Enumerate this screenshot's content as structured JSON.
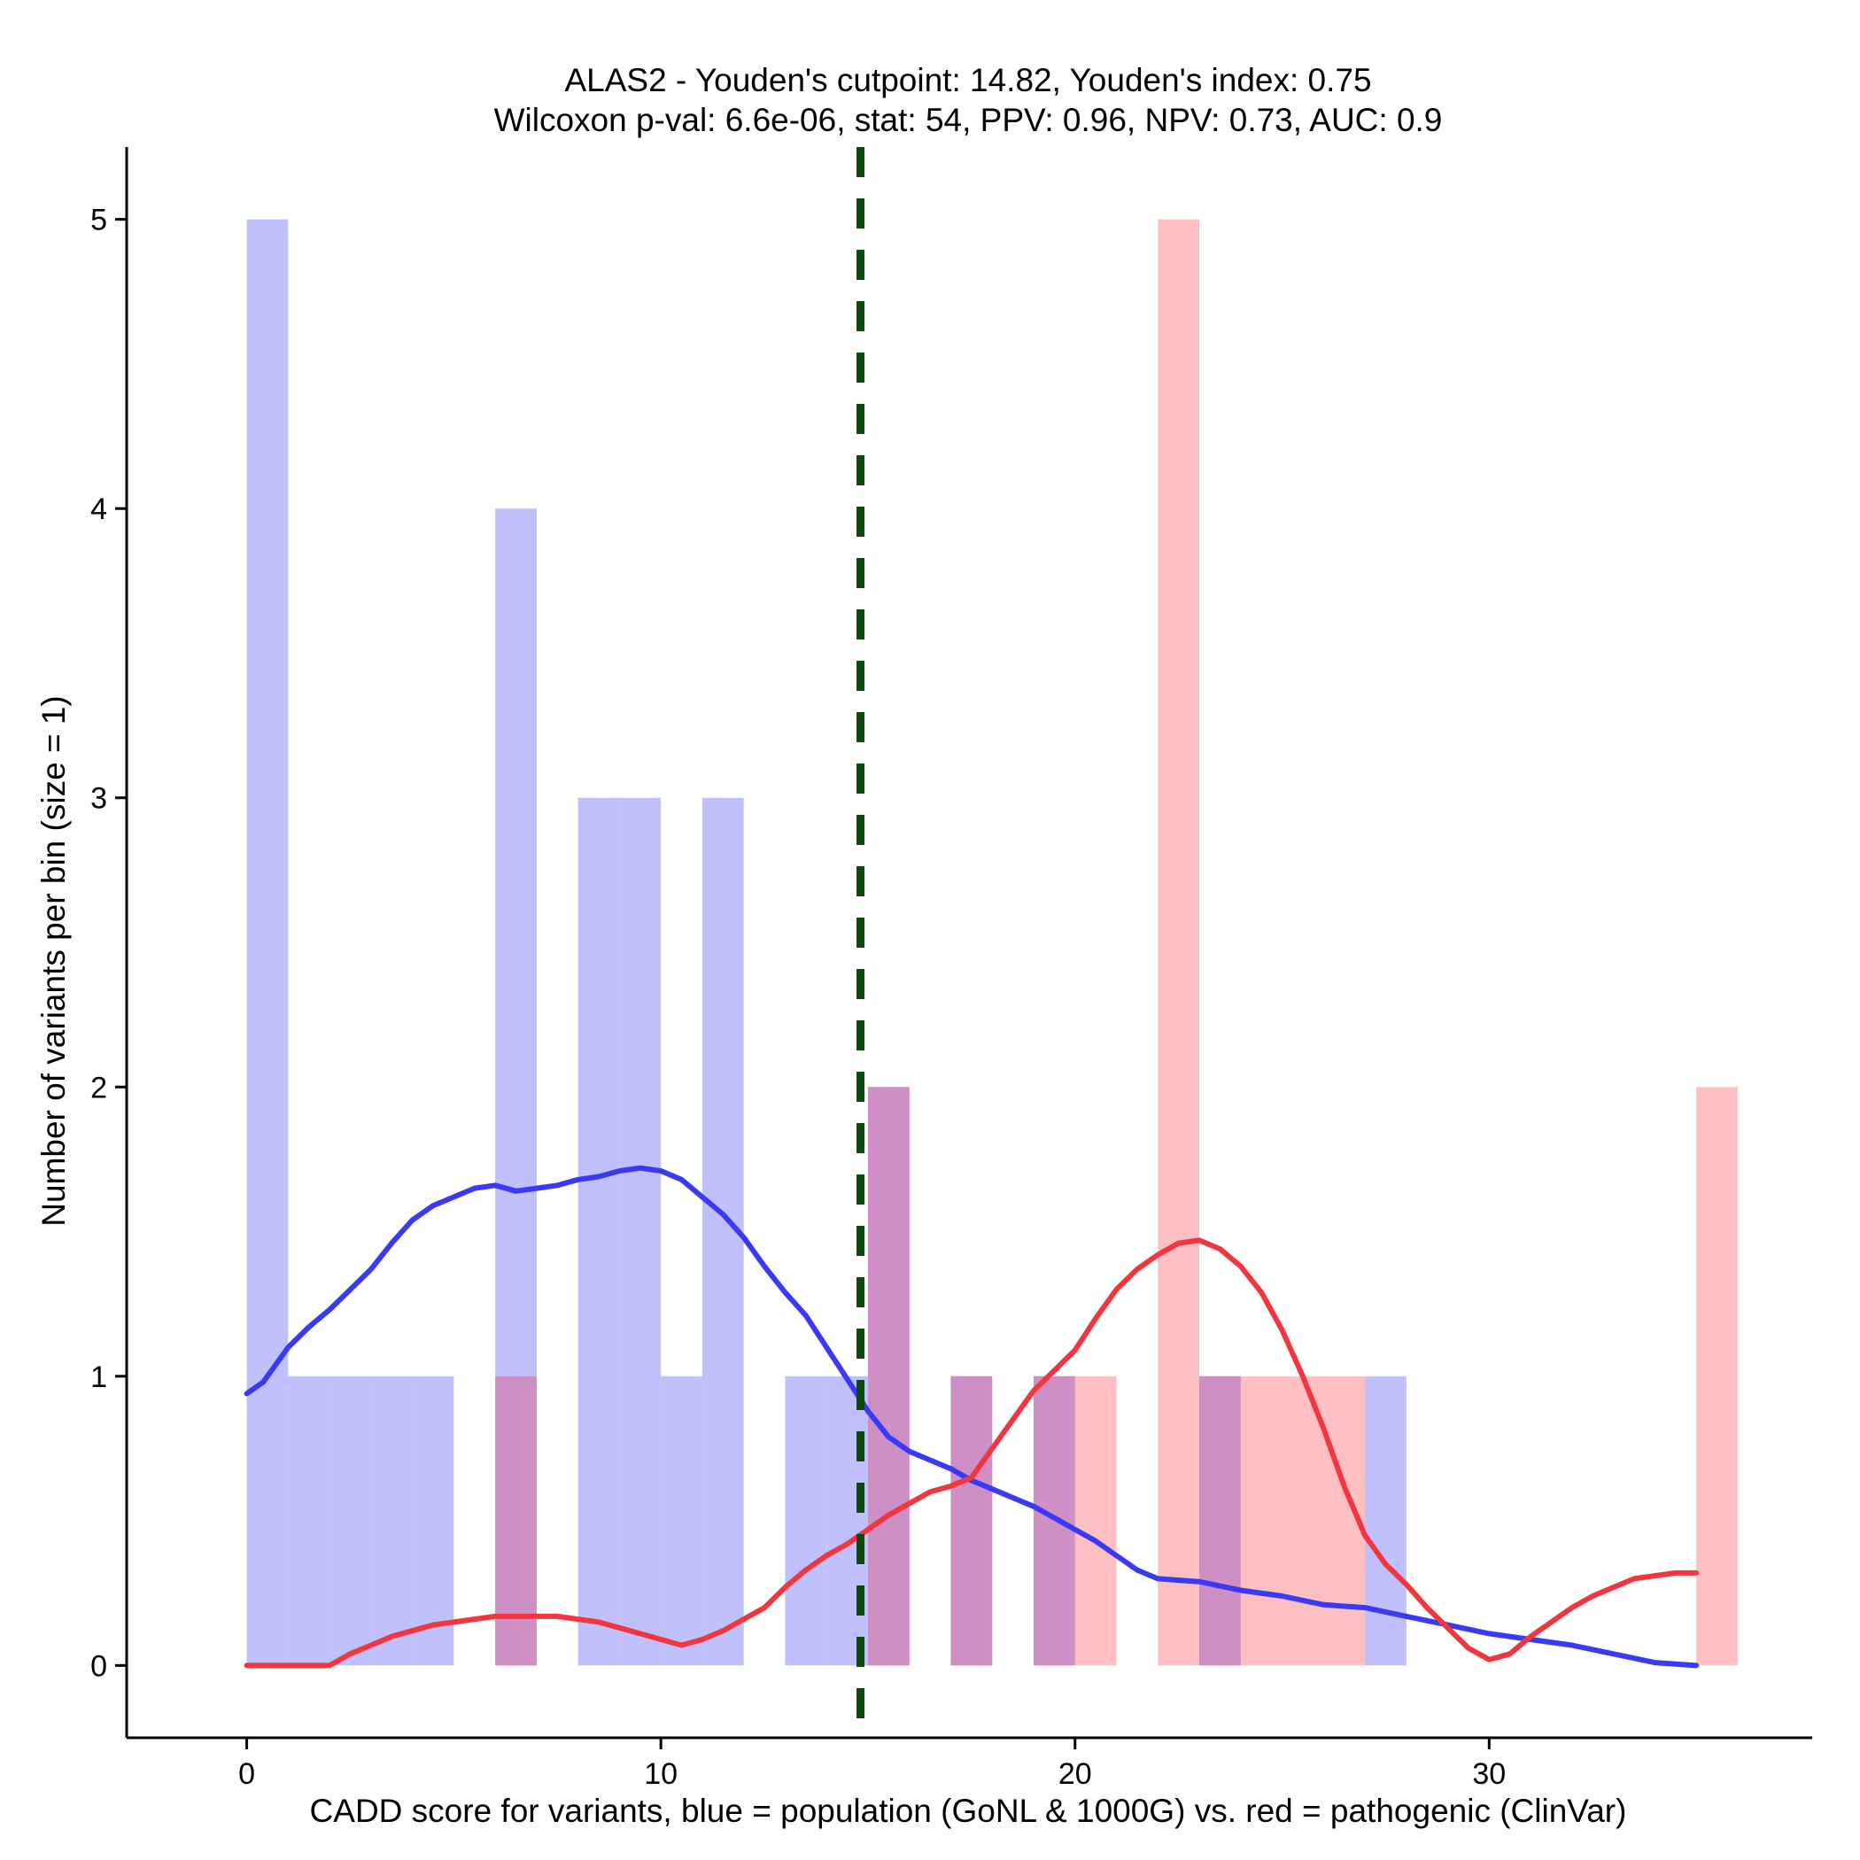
{
  "chart_data": {
    "type": "bar",
    "title_line1": "ALAS2 - Youden's cutpoint: 14.82, Youden's index: 0.75",
    "title_line2": "Wilcoxon p-val: 6.6e-06, stat: 54, PPV: 0.96, NPV: 0.73, AUC: 0.9",
    "xlabel": "CADD score for variants, blue = population (GoNL & 1000G) vs. red = pathogenic (ClinVar)",
    "ylabel": "Number of variants per bin (size = 1)",
    "xlim": [
      -2.9,
      37.8
    ],
    "ylim": [
      -0.25,
      5.25
    ],
    "xticks": [
      0,
      10,
      20,
      30
    ],
    "yticks": [
      0,
      1,
      2,
      3,
      4,
      5
    ],
    "bin_size": 1,
    "cutpoint": 14.82,
    "colors": {
      "population_bar": "#c0c0fc",
      "pathogenic_bar": "#fdbfc1",
      "overlap_bar": "#cd8fc4",
      "population_line": "#3a3af5",
      "pathogenic_line": "#f2363f",
      "cutpoint_line": "#0b4a0b"
    },
    "series": [
      {
        "name": "population (GoNL & 1000G)",
        "bins": [
          {
            "start": 0,
            "count": 5
          },
          {
            "start": 1,
            "count": 1
          },
          {
            "start": 2,
            "count": 1
          },
          {
            "start": 3,
            "count": 1
          },
          {
            "start": 4,
            "count": 1
          },
          {
            "start": 6,
            "count": 4
          },
          {
            "start": 8,
            "count": 3
          },
          {
            "start": 9,
            "count": 3
          },
          {
            "start": 10,
            "count": 1
          },
          {
            "start": 11,
            "count": 3
          },
          {
            "start": 13,
            "count": 1
          },
          {
            "start": 14,
            "count": 1
          },
          {
            "start": 15,
            "count": 2
          },
          {
            "start": 17,
            "count": 1
          },
          {
            "start": 19,
            "count": 1
          },
          {
            "start": 23,
            "count": 1
          },
          {
            "start": 27,
            "count": 1
          }
        ]
      },
      {
        "name": "pathogenic (ClinVar)",
        "bins": [
          {
            "start": 6,
            "count": 1
          },
          {
            "start": 15,
            "count": 2
          },
          {
            "start": 17,
            "count": 1
          },
          {
            "start": 19,
            "count": 1
          },
          {
            "start": 20,
            "count": 1
          },
          {
            "start": 22,
            "count": 5
          },
          {
            "start": 23,
            "count": 1
          },
          {
            "start": 24,
            "count": 1
          },
          {
            "start": 25,
            "count": 1
          },
          {
            "start": 26,
            "count": 1
          },
          {
            "start": 35,
            "count": 2
          }
        ]
      }
    ],
    "density_curves": [
      {
        "name": "population density",
        "x": [
          0,
          0.4,
          1,
          1.5,
          2,
          2.5,
          3,
          3.5,
          4,
          4.5,
          5,
          5.5,
          6,
          6.5,
          7,
          7.5,
          8,
          8.5,
          9,
          9.5,
          10,
          10.5,
          11,
          11.5,
          12,
          12.5,
          13,
          13.5,
          14,
          14.5,
          15,
          15.5,
          16,
          16.5,
          17,
          17.5,
          18,
          18.5,
          19,
          19.5,
          20,
          20.5,
          21,
          21.5,
          22,
          23,
          24,
          25,
          26,
          27,
          28,
          29,
          30,
          31,
          32,
          33,
          34,
          35
        ],
        "y": [
          0.94,
          0.98,
          1.1,
          1.17,
          1.23,
          1.3,
          1.37,
          1.46,
          1.54,
          1.59,
          1.62,
          1.65,
          1.66,
          1.64,
          1.65,
          1.66,
          1.68,
          1.69,
          1.71,
          1.72,
          1.71,
          1.68,
          1.62,
          1.56,
          1.48,
          1.38,
          1.29,
          1.21,
          1.1,
          0.99,
          0.88,
          0.79,
          0.74,
          0.71,
          0.68,
          0.64,
          0.61,
          0.58,
          0.55,
          0.51,
          0.47,
          0.43,
          0.38,
          0.33,
          0.3,
          0.29,
          0.26,
          0.24,
          0.21,
          0.2,
          0.17,
          0.14,
          0.11,
          0.09,
          0.07,
          0.04,
          0.01,
          0.0
        ]
      },
      {
        "name": "pathogenic density",
        "x": [
          0,
          1,
          2,
          2.5,
          3,
          3.5,
          4,
          4.5,
          5,
          5.5,
          6,
          6.5,
          7,
          7.5,
          8,
          8.5,
          9,
          9.5,
          10,
          10.5,
          11,
          11.5,
          12,
          12.5,
          13,
          13.5,
          14,
          14.5,
          15,
          15.5,
          16,
          16.5,
          17,
          17.5,
          18,
          18.5,
          19,
          19.5,
          20,
          20.5,
          21,
          21.5,
          22,
          22.5,
          23,
          23.5,
          24,
          24.5,
          25,
          25.5,
          26,
          26.5,
          27,
          27.5,
          28,
          28.5,
          29,
          29.5,
          30,
          30.5,
          31,
          31.5,
          32,
          32.5,
          33,
          33.5,
          34,
          34.5,
          35
        ],
        "y": [
          0,
          0,
          0,
          0.04,
          0.07,
          0.1,
          0.12,
          0.14,
          0.15,
          0.16,
          0.17,
          0.17,
          0.17,
          0.17,
          0.16,
          0.15,
          0.13,
          0.11,
          0.09,
          0.07,
          0.09,
          0.12,
          0.16,
          0.2,
          0.27,
          0.33,
          0.38,
          0.42,
          0.47,
          0.52,
          0.56,
          0.6,
          0.62,
          0.65,
          0.75,
          0.85,
          0.95,
          1.02,
          1.09,
          1.2,
          1.3,
          1.37,
          1.42,
          1.46,
          1.47,
          1.44,
          1.38,
          1.29,
          1.16,
          1.0,
          0.82,
          0.62,
          0.45,
          0.35,
          0.28,
          0.2,
          0.13,
          0.06,
          0.02,
          0.04,
          0.1,
          0.15,
          0.2,
          0.24,
          0.27,
          0.3,
          0.31,
          0.32,
          0.32
        ]
      }
    ]
  }
}
